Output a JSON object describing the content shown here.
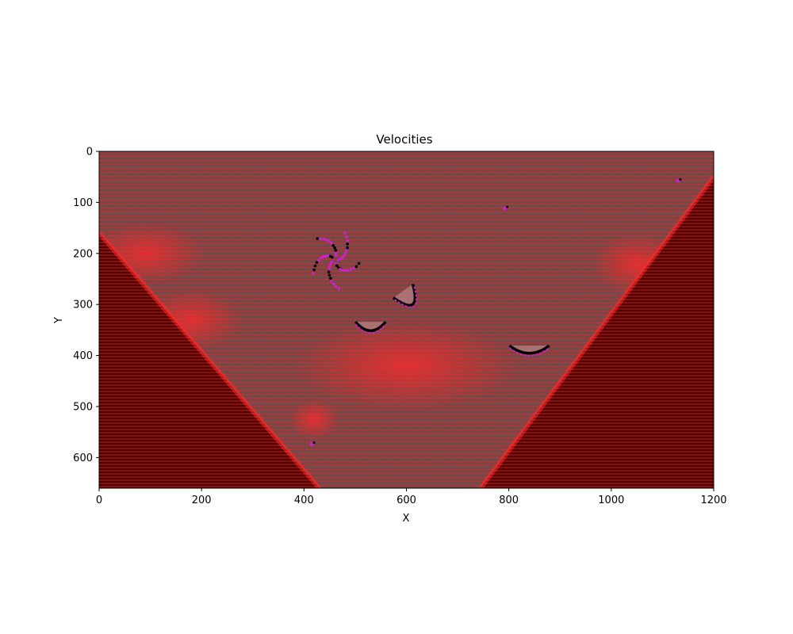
{
  "chart_data": {
    "type": "heatmap",
    "title": "Velocities",
    "xlabel": "X",
    "ylabel": "Y",
    "xlim": [
      0,
      1200
    ],
    "ylim": [
      660,
      0
    ],
    "y_inverted": true,
    "x_ticks": [
      0,
      200,
      400,
      600,
      800,
      1000,
      1200
    ],
    "y_ticks": [
      0,
      100,
      200,
      300,
      400,
      500,
      600
    ],
    "grid": false,
    "colors": {
      "background_image": "#6f4a4a",
      "vector_field": "#ff1a1a",
      "masked_region": "#3a0000",
      "contour": "#000000",
      "highlight": "#cc22cc"
    },
    "masked_regions": [
      {
        "name": "left-wedge",
        "points": [
          [
            0,
            160
          ],
          [
            0,
            660
          ],
          [
            430,
            660
          ]
        ]
      },
      {
        "name": "right-wedge",
        "points": [
          [
            1200,
            50
          ],
          [
            1200,
            660
          ],
          [
            745,
            660
          ]
        ]
      }
    ],
    "features": [
      {
        "name": "cluster-a",
        "x": 460,
        "y": 212
      },
      {
        "name": "arc-b",
        "x": 530,
        "y": 345
      },
      {
        "name": "arc-c",
        "x": 605,
        "y": 290
      },
      {
        "name": "arc-d",
        "x": 840,
        "y": 390
      },
      {
        "name": "spot-e",
        "x": 792,
        "y": 112
      },
      {
        "name": "spot-f",
        "x": 1130,
        "y": 58
      },
      {
        "name": "spot-g",
        "x": 415,
        "y": 574
      }
    ]
  }
}
